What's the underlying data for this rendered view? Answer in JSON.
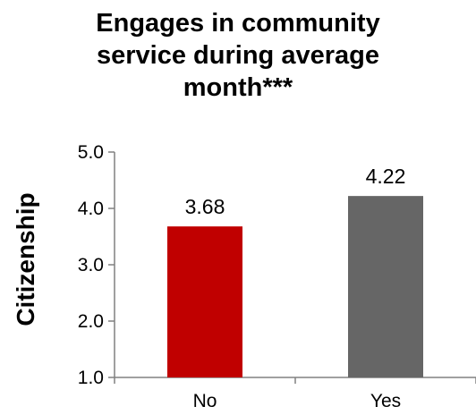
{
  "chart_data": {
    "type": "bar",
    "title_lines": [
      "Engages in community",
      "service during average",
      "month***"
    ],
    "ylabel": "Citizenship",
    "xlabel": "",
    "categories": [
      "No",
      "Yes"
    ],
    "values": [
      3.68,
      4.22
    ],
    "data_labels": [
      "3.68",
      "4.22"
    ],
    "bar_colors": [
      "#C00000",
      "#666666"
    ],
    "ylim": [
      1.0,
      5.0
    ],
    "yticks": [
      "1.0",
      "2.0",
      "3.0",
      "4.0",
      "5.0"
    ],
    "grid": false,
    "legend": "none"
  }
}
